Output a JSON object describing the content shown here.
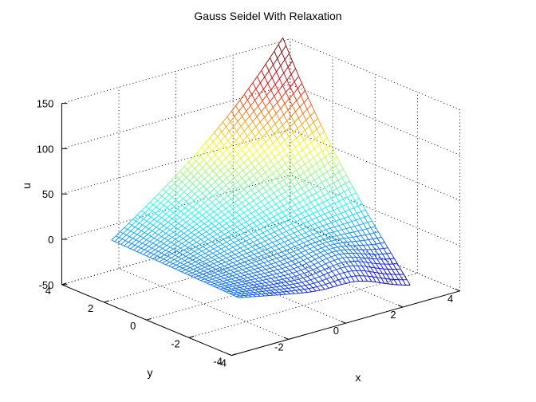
{
  "chart_data": {
    "type": "surface",
    "title": "Gauss Seidel With Relaxation",
    "xlabel": "x",
    "ylabel": "y",
    "zlabel": "u",
    "xlim": [
      -4,
      4
    ],
    "ylim": [
      -4,
      4
    ],
    "zlim": [
      -50,
      150
    ],
    "xticks": [
      -4,
      -2,
      0,
      2,
      4
    ],
    "xtick_labels": [
      "-4",
      "-2",
      "0",
      "2",
      "4"
    ],
    "yticks": [
      -4,
      -2,
      0,
      2,
      4
    ],
    "ytick_labels": [
      "-4",
      "-2",
      "0",
      "2",
      "4"
    ],
    "zticks": [
      -50,
      0,
      50,
      100,
      150
    ],
    "ztick_labels": [
      "-50",
      "0",
      "50",
      "100",
      "150"
    ],
    "grid": true,
    "colormap": "jet",
    "mesh": {
      "x_range": [
        -3,
        3
      ],
      "y_range": [
        -3,
        3
      ],
      "corner_values": {
        "x_-3_y_3": 0,
        "x_-3_y_-3": -5,
        "x_3_y_3": 140,
        "x_3_y_-3": -45
      },
      "n_lines": 41
    }
  }
}
